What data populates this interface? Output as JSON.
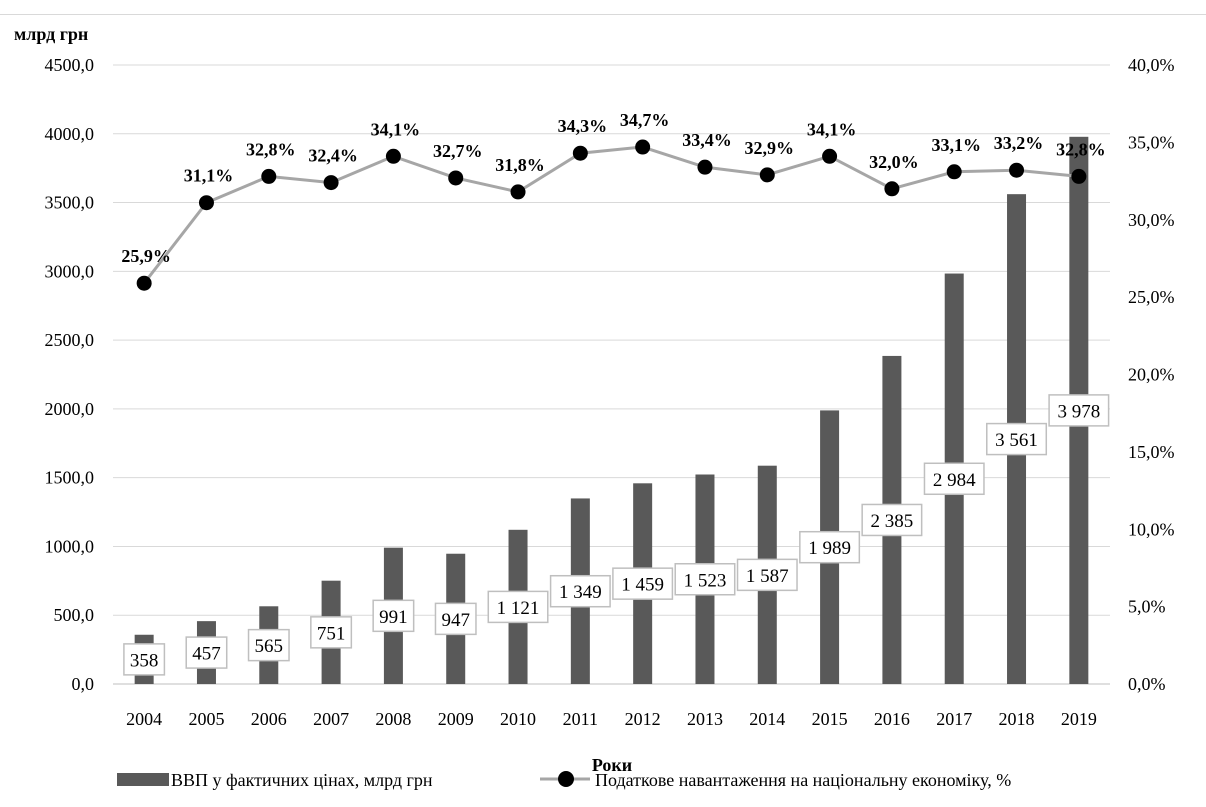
{
  "chart_data": {
    "type": "bar",
    "ylabel": "млрд грн",
    "xlabel": "Роки",
    "ylim": [
      0,
      4500
    ],
    "y2lim": [
      0,
      40
    ],
    "y_ticks": [
      "0,0",
      "500,0",
      "1000,0",
      "1500,0",
      "2000,0",
      "2500,0",
      "3000,0",
      "3500,0",
      "4000,0",
      "4500,0"
    ],
    "y2_ticks": [
      "0,0%",
      "5,0%",
      "10,0%",
      "15,0%",
      "20,0%",
      "25,0%",
      "30,0%",
      "35,0%",
      "40,0%"
    ],
    "categories": [
      "2004",
      "2005",
      "2006",
      "2007",
      "2008",
      "2009",
      "2010",
      "2011",
      "2012",
      "2013",
      "2014",
      "2015",
      "2016",
      "2017",
      "2018",
      "2019"
    ],
    "grid": true,
    "legend_position": "bottom",
    "series": [
      {
        "name": "ВВП у фактичних цінах, млрд грн",
        "type": "bar",
        "axis": "left",
        "color": "#595959",
        "values": [
          358,
          457,
          565,
          751,
          991,
          947,
          1121,
          1349,
          1459,
          1523,
          1587,
          1989,
          2385,
          2984,
          3561,
          3978
        ],
        "labels": [
          "358",
          "457",
          "565",
          "751",
          "991",
          "947",
          "1 121",
          "1 349",
          "1 459",
          "1 523",
          "1 587",
          "1 989",
          "2 385",
          "2 984",
          "3 561",
          "3 978"
        ]
      },
      {
        "name": "Податкове навантаження на національну економіку, %",
        "type": "line",
        "axis": "right",
        "color": "#a6a6a6",
        "marker_color": "#000000",
        "values": [
          25.9,
          31.1,
          32.8,
          32.4,
          34.1,
          32.7,
          31.8,
          34.3,
          34.7,
          33.4,
          32.9,
          34.1,
          32.0,
          33.1,
          33.2,
          32.8
        ],
        "labels": [
          "25,9%",
          "31,1%",
          "32,8%",
          "32,4%",
          "34,1%",
          "32,7%",
          "31,8%",
          "34,3%",
          "34,7%",
          "33,4%",
          "32,9%",
          "34,1%",
          "32,0%",
          "33,1%",
          "33,2%",
          "32,8%"
        ]
      }
    ]
  }
}
